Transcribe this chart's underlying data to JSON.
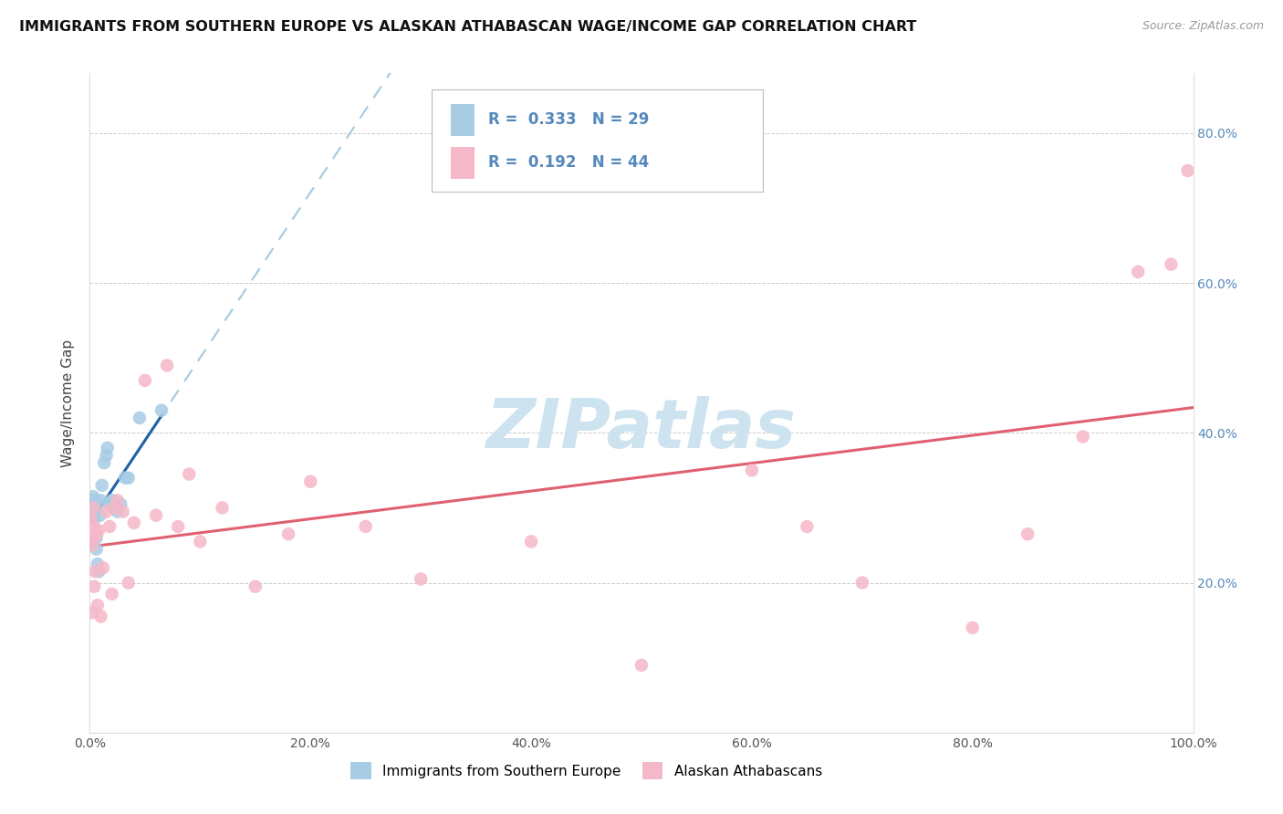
{
  "title": "IMMIGRANTS FROM SOUTHERN EUROPE VS ALASKAN ATHABASCAN WAGE/INCOME GAP CORRELATION CHART",
  "source": "Source: ZipAtlas.com",
  "ylabel": "Wage/Income Gap",
  "watermark": "ZIPatlas",
  "legend_entry1": "Immigrants from Southern Europe",
  "legend_entry2": "Alaskan Athabascans",
  "r1": "0.333",
  "n1": "29",
  "r2": "0.192",
  "n2": "44",
  "blue_color": "#a8cce4",
  "pink_color": "#f5b8c8",
  "blue_line_color": "#2060a8",
  "pink_line_color": "#e06070",
  "dashed_line_color": "#a8cce4",
  "xlim": [
    0.0,
    1.0
  ],
  "ylim": [
    0.0,
    0.88
  ],
  "xticks": [
    0.0,
    0.2,
    0.4,
    0.6,
    0.8,
    1.0
  ],
  "yticks": [
    0.2,
    0.4,
    0.6,
    0.8
  ],
  "blue_x": [
    0.001,
    0.002,
    0.002,
    0.003,
    0.003,
    0.003,
    0.004,
    0.004,
    0.005,
    0.005,
    0.006,
    0.006,
    0.007,
    0.008,
    0.009,
    0.01,
    0.011,
    0.013,
    0.015,
    0.016,
    0.017,
    0.02,
    0.022,
    0.025,
    0.028,
    0.032,
    0.035,
    0.045,
    0.065
  ],
  "blue_y": [
    0.305,
    0.29,
    0.31,
    0.315,
    0.295,
    0.3,
    0.285,
    0.295,
    0.31,
    0.3,
    0.26,
    0.245,
    0.225,
    0.215,
    0.29,
    0.31,
    0.33,
    0.36,
    0.37,
    0.38,
    0.305,
    0.31,
    0.305,
    0.295,
    0.305,
    0.34,
    0.34,
    0.42,
    0.43
  ],
  "pink_x": [
    0.001,
    0.002,
    0.002,
    0.003,
    0.003,
    0.004,
    0.004,
    0.005,
    0.006,
    0.007,
    0.008,
    0.01,
    0.012,
    0.015,
    0.018,
    0.02,
    0.022,
    0.025,
    0.03,
    0.035,
    0.04,
    0.05,
    0.06,
    0.07,
    0.08,
    0.09,
    0.1,
    0.12,
    0.15,
    0.18,
    0.2,
    0.25,
    0.3,
    0.4,
    0.5,
    0.6,
    0.65,
    0.7,
    0.8,
    0.85,
    0.9,
    0.95,
    0.98,
    0.995
  ],
  "pink_y": [
    0.285,
    0.25,
    0.16,
    0.3,
    0.275,
    0.26,
    0.195,
    0.215,
    0.265,
    0.17,
    0.27,
    0.155,
    0.22,
    0.295,
    0.275,
    0.185,
    0.3,
    0.31,
    0.295,
    0.2,
    0.28,
    0.47,
    0.29,
    0.49,
    0.275,
    0.345,
    0.255,
    0.3,
    0.195,
    0.265,
    0.335,
    0.275,
    0.205,
    0.255,
    0.09,
    0.35,
    0.275,
    0.2,
    0.14,
    0.265,
    0.395,
    0.615,
    0.625,
    0.75
  ],
  "background_color": "#ffffff",
  "grid_color": "#cccccc",
  "title_fontsize": 11.5,
  "axis_label_fontsize": 11,
  "tick_fontsize": 10,
  "legend_fontsize": 12,
  "watermark_fontsize": 54,
  "watermark_color": "#cde3f0",
  "tick_color_y": "#5588bb",
  "tick_color_x": "#555555"
}
